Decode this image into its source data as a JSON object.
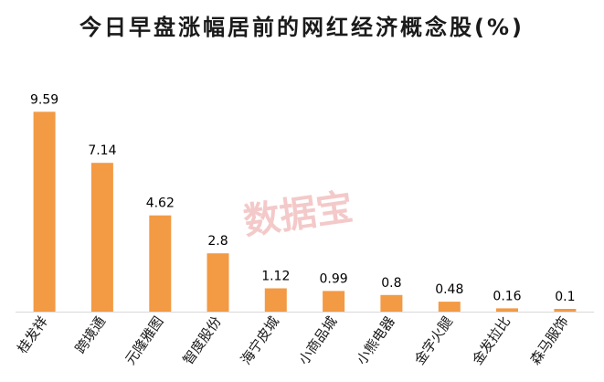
{
  "chart_data": {
    "type": "bar",
    "title": "今日早盘涨幅居前的网红经济概念股(%)",
    "categories": [
      "桂发祥",
      "跨境通",
      "元隆雅图",
      "智度股份",
      "海宁皮城",
      "小商品城",
      "小熊电器",
      "金字火腿",
      "金发拉比",
      "森马服饰"
    ],
    "values": [
      9.59,
      7.14,
      4.62,
      2.8,
      1.12,
      0.99,
      0.8,
      0.48,
      0.16,
      0.1
    ],
    "value_labels": [
      "9.59",
      "7.14",
      "4.62",
      "2.8",
      "1.12",
      "0.99",
      "0.8",
      "0.48",
      "0.16",
      "0.1"
    ],
    "xlabel": "",
    "ylabel": "",
    "ylim": [
      0,
      10
    ],
    "grid": false,
    "legend": "none",
    "bar_color": "#f39a44"
  },
  "watermark": "数据宝"
}
